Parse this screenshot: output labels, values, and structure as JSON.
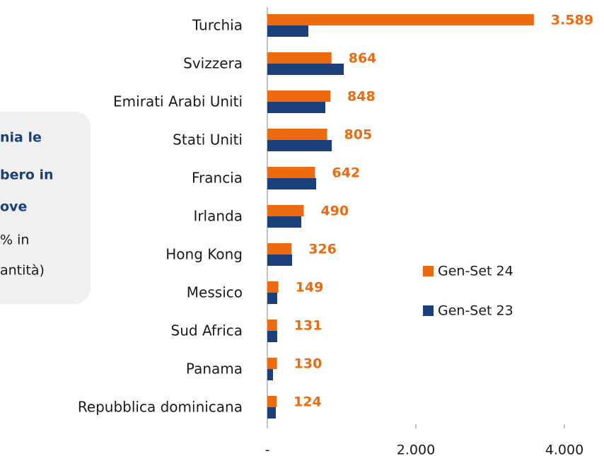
{
  "chart_data": {
    "type": "hbar",
    "annotation": [
      "nia le",
      "bero in",
      "ove",
      "% in",
      "antità)"
    ],
    "categories": [
      "Turchia",
      "Svizzera",
      "Emirati Arabi Uniti",
      "Stati Uniti",
      "Francia",
      "Irlanda",
      "Hong Kong",
      "Messico",
      "Sud Africa",
      "Panama",
      "Repubblica dominicana"
    ],
    "series": [
      {
        "name": "Gen-Set 24",
        "color": "#ED6B0E",
        "values": [
          3589,
          864,
          848,
          805,
          642,
          490,
          326,
          149,
          131,
          130,
          124
        ],
        "value_labels": [
          "3.589",
          "864",
          "848",
          "805",
          "642",
          "490",
          "326",
          "149",
          "131",
          "130",
          "124"
        ]
      },
      {
        "name": "Gen-Set 23",
        "color": "#1B3F7A",
        "values": [
          552,
          1029,
          781,
          867,
          657,
          457,
          333,
          133,
          133,
          76,
          114
        ]
      }
    ],
    "xlim": [
      0,
      4000
    ],
    "xticks": [
      {
        "value": 0,
        "label": "-"
      },
      {
        "value": 2000,
        "label": "2.000"
      },
      {
        "value": 4000,
        "label": "4.000"
      }
    ],
    "grid": false
  }
}
